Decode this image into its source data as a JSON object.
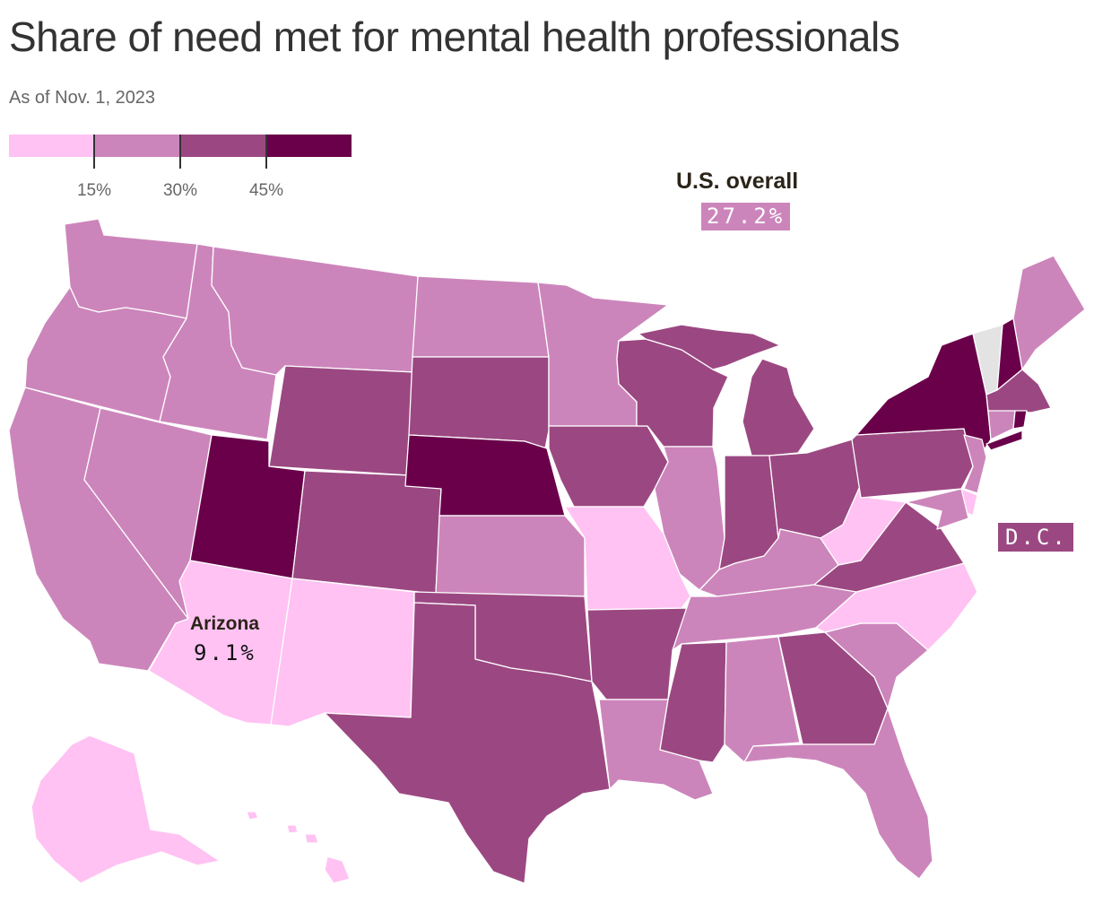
{
  "header": {
    "title": "Share of need met for mental health professionals",
    "subtitle": "As of Nov. 1, 2023"
  },
  "legend": {
    "colors": [
      "#ffc2f3",
      "#cc85bb",
      "#9b4882",
      "#6a004a"
    ],
    "tick_labels": [
      "15%",
      "30%",
      "45%"
    ],
    "thresholds": [
      15,
      30,
      45
    ]
  },
  "map": {
    "no_data_color": "#e3e3e3",
    "states": [
      {
        "id": "WA",
        "bin": 1
      },
      {
        "id": "OR",
        "bin": 1
      },
      {
        "id": "CA",
        "bin": 1
      },
      {
        "id": "ID",
        "bin": 1
      },
      {
        "id": "NV",
        "bin": 1
      },
      {
        "id": "MT",
        "bin": 1
      },
      {
        "id": "WY",
        "bin": 2
      },
      {
        "id": "UT",
        "bin": 3
      },
      {
        "id": "AZ",
        "bin": 0
      },
      {
        "id": "CO",
        "bin": 2
      },
      {
        "id": "NM",
        "bin": 0
      },
      {
        "id": "ND",
        "bin": 1
      },
      {
        "id": "SD",
        "bin": 2
      },
      {
        "id": "NE",
        "bin": 3
      },
      {
        "id": "KS",
        "bin": 1
      },
      {
        "id": "OK",
        "bin": 2
      },
      {
        "id": "TX",
        "bin": 2
      },
      {
        "id": "MN",
        "bin": 1
      },
      {
        "id": "IA",
        "bin": 2
      },
      {
        "id": "MO",
        "bin": 0
      },
      {
        "id": "AR",
        "bin": 2
      },
      {
        "id": "LA",
        "bin": 1
      },
      {
        "id": "WI",
        "bin": 2
      },
      {
        "id": "IL",
        "bin": 1
      },
      {
        "id": "MI",
        "bin": 2
      },
      {
        "id": "IN",
        "bin": 2
      },
      {
        "id": "OH",
        "bin": 2
      },
      {
        "id": "KY",
        "bin": 1
      },
      {
        "id": "TN",
        "bin": 1
      },
      {
        "id": "MS",
        "bin": 2
      },
      {
        "id": "AL",
        "bin": 1
      },
      {
        "id": "GA",
        "bin": 2
      },
      {
        "id": "FL",
        "bin": 1
      },
      {
        "id": "SC",
        "bin": 1
      },
      {
        "id": "NC",
        "bin": 0
      },
      {
        "id": "VA",
        "bin": 2
      },
      {
        "id": "WV",
        "bin": 0
      },
      {
        "id": "PA",
        "bin": 2
      },
      {
        "id": "NY",
        "bin": 3
      },
      {
        "id": "VT",
        "bin": -1
      },
      {
        "id": "NH",
        "bin": 3
      },
      {
        "id": "ME",
        "bin": 1
      },
      {
        "id": "MA",
        "bin": 2
      },
      {
        "id": "RI",
        "bin": 3
      },
      {
        "id": "CT",
        "bin": 1
      },
      {
        "id": "NJ",
        "bin": 1
      },
      {
        "id": "DE",
        "bin": 0
      },
      {
        "id": "MD",
        "bin": 1
      },
      {
        "id": "AK",
        "bin": 0
      },
      {
        "id": "HI",
        "bin": 0
      }
    ]
  },
  "callouts": {
    "us_overall": {
      "name": "U.S. overall",
      "value": "27.2%"
    },
    "arizona": {
      "name": "Arizona",
      "value": "9.1%"
    },
    "dc": {
      "value": "D.C."
    }
  }
}
